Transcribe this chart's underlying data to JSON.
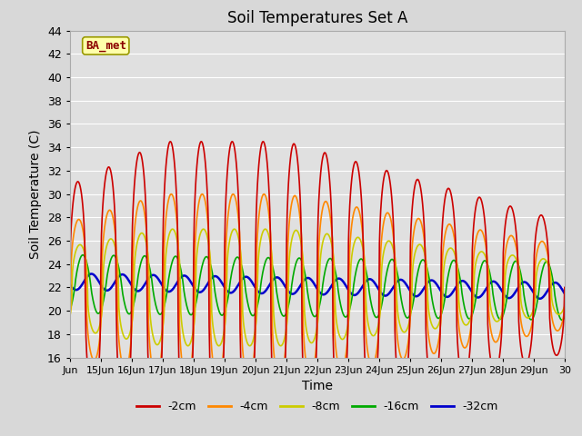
{
  "title": "Soil Temperatures Set A",
  "xlabel": "Time",
  "ylabel": "Soil Temperature (C)",
  "ylim": [
    16,
    44
  ],
  "xlim": [
    0,
    16
  ],
  "yticks": [
    16,
    18,
    20,
    22,
    24,
    26,
    28,
    30,
    32,
    34,
    36,
    38,
    40,
    42,
    44
  ],
  "xtick_labels": [
    "Jun",
    "15Jun",
    "16Jun",
    "17Jun",
    "18Jun",
    "19Jun",
    "20Jun",
    "21Jun",
    "22Jun",
    "23Jun",
    "24Jun",
    "25Jun",
    "26Jun",
    "27Jun",
    "28Jun",
    "29Jun",
    "30"
  ],
  "series_labels": [
    "-2cm",
    "-4cm",
    "-8cm",
    "-16cm",
    "-32cm"
  ],
  "series_colors": [
    "#cc0000",
    "#ff8800",
    "#cccc00",
    "#00aa00",
    "#0000cc"
  ],
  "series_linewidths": [
    1.2,
    1.2,
    1.2,
    1.2,
    1.8
  ],
  "annotation_text": "BA_met",
  "bg_color": "#d8d8d8",
  "plot_bg_color": "#e0e0e0",
  "grid_color": "#ffffff",
  "base_temp": 22.0,
  "num_days": 16,
  "pts_per_day": 48
}
